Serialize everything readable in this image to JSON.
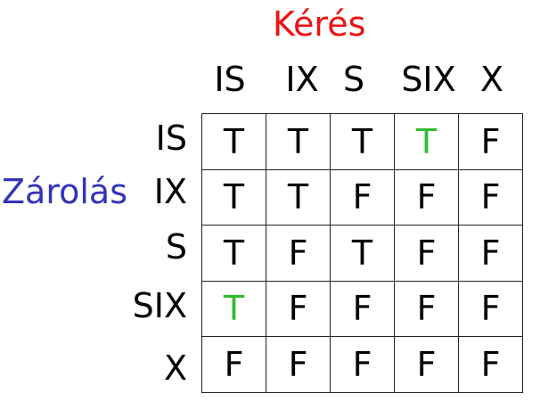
{
  "colors": {
    "request_title": "#ee1111",
    "lock_title": "#3333bb",
    "cell_text": "#000000",
    "highlight_cell": "#33bb33",
    "grid_line": "#222222"
  },
  "request_title": "Kérés",
  "lock_title": "Zárolás",
  "columns": [
    "IS",
    "IX",
    "S",
    "SIX",
    "X"
  ],
  "rows": [
    {
      "label": "IS",
      "cells": [
        "T",
        "T",
        "T",
        "T",
        "F"
      ],
      "highlight": [
        false,
        false,
        false,
        true,
        false
      ]
    },
    {
      "label": "IX",
      "cells": [
        "T",
        "T",
        "F",
        "F",
        "F"
      ],
      "highlight": [
        false,
        false,
        false,
        false,
        false
      ]
    },
    {
      "label": "S",
      "cells": [
        "T",
        "F",
        "T",
        "F",
        "F"
      ],
      "highlight": [
        false,
        false,
        false,
        false,
        false
      ]
    },
    {
      "label": "SIX",
      "cells": [
        "T",
        "F",
        "F",
        "F",
        "F"
      ],
      "highlight": [
        true,
        false,
        false,
        false,
        false
      ]
    },
    {
      "label": "X",
      "cells": [
        "F",
        "F",
        "F",
        "F",
        "F"
      ],
      "highlight": [
        false,
        false,
        false,
        false,
        false
      ]
    }
  ]
}
